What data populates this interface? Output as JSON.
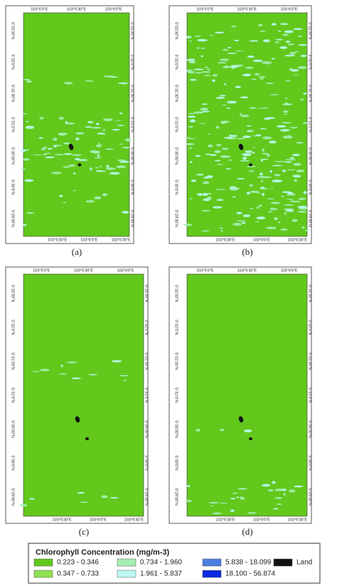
{
  "panels": [
    {
      "caption": "(a)"
    },
    {
      "caption": "(b)"
    },
    {
      "caption": "(c)"
    },
    {
      "caption": "(d)"
    }
  ],
  "axes": {
    "top": [
      "103°5'0\"E",
      "103°5'30\"E",
      "103°6'0\"E"
    ],
    "bottom": [
      "103°5'30\"E",
      "103°6'0\"E",
      "103°6'30\"E"
    ],
    "left": [
      "5°32'30\"N",
      "5°32'0\"N",
      "5°31'30\"N",
      "5°31'0\"N",
      "5°30'30\"N",
      "5°30'0\"N",
      "5°29'30\"N"
    ],
    "right": [
      "5°32'30\"N",
      "5°32'0\"N",
      "5°31'30\"N",
      "5°31'0\"N",
      "5°30'30\"N",
      "5°30'0\"N",
      "5°29'30\"N"
    ]
  },
  "legend": {
    "title": "Chlorophyll Concentration (mg/m-3)",
    "items": [
      {
        "label": "0.223 - 0.346",
        "color": "#62c81c"
      },
      {
        "label": "0.347 - 0.733",
        "color": "#8ee050"
      },
      {
        "label": "0.734 - 1.960",
        "color": "#a6eeb4"
      },
      {
        "label": "1.961 - 5.837",
        "color": "#bdf8f2"
      },
      {
        "label": "5.838 - 18.099",
        "color": "#4d7de0"
      },
      {
        "label": "18.100 - 56.874",
        "color": "#0a2ae0"
      },
      {
        "label": "Land",
        "color": "#111111"
      }
    ]
  }
}
